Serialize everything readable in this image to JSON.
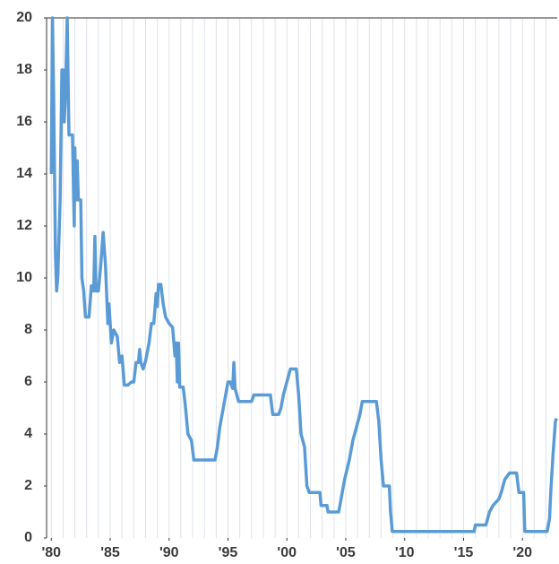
{
  "chart_data": {
    "type": "line",
    "x": [
      1980.0,
      1980.1,
      1980.2,
      1980.35,
      1980.45,
      1980.55,
      1980.75,
      1980.9,
      1981.0,
      1981.1,
      1981.2,
      1981.35,
      1981.5,
      1981.8,
      1981.9,
      1981.95,
      1982.0,
      1982.1,
      1982.2,
      1982.3,
      1982.5,
      1982.6,
      1982.75,
      1982.9,
      1983.2,
      1983.4,
      1983.6,
      1983.7,
      1983.8,
      1984.0,
      1984.2,
      1984.4,
      1984.6,
      1984.8,
      1984.9,
      1985.1,
      1985.3,
      1985.6,
      1985.8,
      1986.0,
      1986.2,
      1986.5,
      1986.8,
      1987.0,
      1987.2,
      1987.4,
      1987.5,
      1987.6,
      1987.8,
      1988.0,
      1988.3,
      1988.5,
      1988.7,
      1988.9,
      1989.0,
      1989.1,
      1989.3,
      1989.5,
      1989.7,
      1990.0,
      1990.3,
      1990.5,
      1990.6,
      1990.7,
      1990.8,
      1990.9,
      1991.2,
      1991.4,
      1991.6,
      1991.9,
      1992.1,
      1993.0,
      1993.9,
      1994.1,
      1994.3,
      1994.5,
      1994.8,
      1995.0,
      1995.2,
      1995.4,
      1995.5,
      1995.6,
      1995.9,
      1997.0,
      1997.2,
      1998.6,
      1998.8,
      1999.3,
      1999.5,
      1999.7,
      2000.0,
      2000.3,
      2000.8,
      2001.0,
      2001.2,
      2001.5,
      2001.7,
      2001.9,
      2002.8,
      2002.9,
      2003.4,
      2003.5,
      2004.4,
      2004.6,
      2004.9,
      2005.3,
      2005.6,
      2005.9,
      2006.2,
      2006.4,
      2007.6,
      2007.8,
      2008.0,
      2008.2,
      2008.7,
      2008.8,
      2008.95,
      2015.9,
      2016.0,
      2016.9,
      2017.2,
      2017.5,
      2018.0,
      2018.2,
      2018.5,
      2018.9,
      2019.5,
      2019.7,
      2020.1,
      2020.2,
      2022.1,
      2022.3,
      2022.4,
      2022.5,
      2022.6,
      2022.8,
      2022.9
    ],
    "values": [
      14,
      20,
      17,
      11,
      9.5,
      10,
      13,
      18,
      18,
      16,
      17,
      20,
      15.5,
      15.5,
      13,
      12,
      15,
      13,
      14.5,
      13,
      13,
      10,
      9.5,
      8.5,
      8.5,
      9.7,
      9.5,
      11.6,
      9.5,
      9.5,
      10.5,
      11.75,
      10.5,
      8.25,
      9,
      7.5,
      8,
      7.75,
      6.75,
      7,
      5.88,
      5.88,
      6,
      6,
      6.75,
      6.75,
      7.25,
      6.75,
      6.5,
      6.8,
      7.5,
      8.25,
      8.25,
      9.4,
      8.9,
      9.75,
      9.75,
      9,
      8.5,
      8.25,
      8.1,
      7,
      7.5,
      6,
      7.5,
      5.8,
      5.8,
      5,
      4,
      3.75,
      3,
      3,
      3,
      3.5,
      4.25,
      4.75,
      5.5,
      6,
      6,
      5.75,
      6.75,
      5.75,
      5.25,
      5.25,
      5.5,
      5.5,
      4.75,
      4.75,
      5,
      5.5,
      6,
      6.5,
      6.5,
      5.5,
      4,
      3.5,
      2,
      1.75,
      1.75,
      1.25,
      1.25,
      1,
      1,
      1.5,
      2.25,
      3,
      3.75,
      4.25,
      4.75,
      5.25,
      5.25,
      4.5,
      3,
      2,
      2,
      1,
      0.25,
      0.25,
      0.5,
      0.5,
      1,
      1.25,
      1.5,
      1.75,
      2.25,
      2.5,
      2.5,
      1.75,
      1.75,
      0.25,
      0.25,
      0.75,
      1.75,
      2.5,
      3.25,
      4.5,
      4.6
    ],
    "color": "#5b9bd5",
    "xlim": [
      1979.6,
      2022.95
    ],
    "xticks": [
      {
        "value": 1980,
        "label": "'80"
      },
      {
        "value": 1985,
        "label": "'85"
      },
      {
        "value": 1990,
        "label": "'90"
      },
      {
        "value": 1995,
        "label": "'95"
      },
      {
        "value": 2000,
        "label": "'00"
      },
      {
        "value": 2005,
        "label": "'05"
      },
      {
        "value": 2010,
        "label": "'10"
      },
      {
        "value": 2015,
        "label": "'15"
      },
      {
        "value": 2020,
        "label": "'20"
      }
    ],
    "xgrid": [
      1980,
      1981,
      1982,
      1983,
      1984,
      1985,
      1986,
      1987,
      1988,
      1989,
      1990,
      1991,
      1992,
      1993,
      1994,
      1995,
      1996,
      1997,
      1998,
      1999,
      2000,
      2001,
      2002,
      2003,
      2004,
      2005,
      2006,
      2007,
      2008,
      2009,
      2010,
      2011,
      2012,
      2013,
      2014,
      2015,
      2016,
      2017,
      2018,
      2019,
      2020,
      2021,
      2022
    ],
    "ylim": [
      0,
      20
    ],
    "yticks": [
      0,
      2,
      4,
      6,
      8,
      10,
      12,
      14,
      16,
      18,
      20
    ]
  }
}
